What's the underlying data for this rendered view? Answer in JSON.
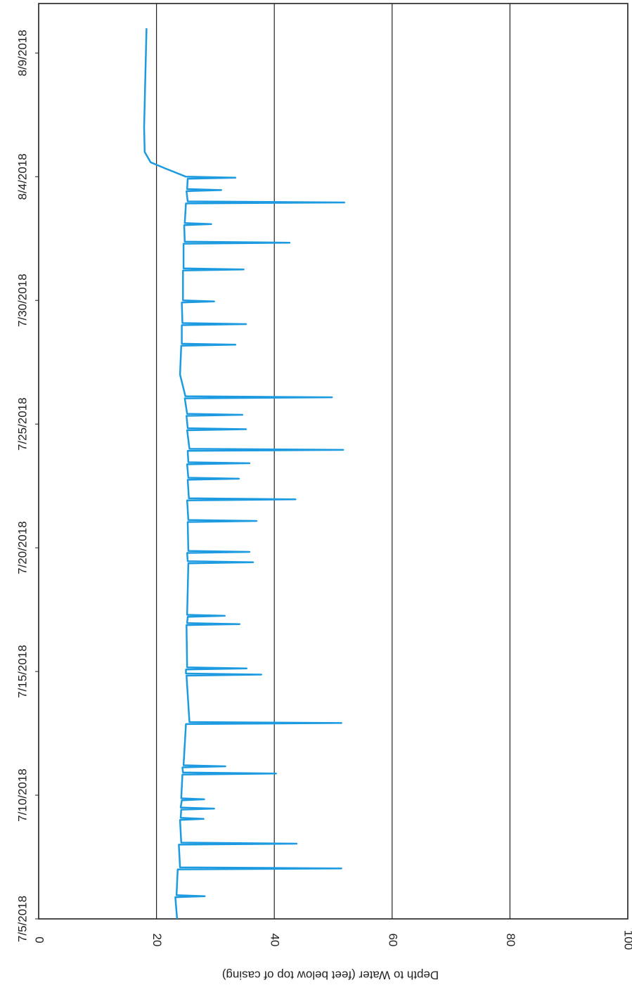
{
  "chart_data": {
    "type": "line",
    "y_label": "Depth to Water (feet below top of casing)",
    "x": [
      "2018-07-05T00:00",
      "2018-07-05T21:00",
      "2018-07-05T22:00",
      "2018-07-05T23:00",
      "2018-07-07T00:00",
      "2018-07-07T01:00",
      "2018-07-07T02:00",
      "2018-07-08T00:00",
      "2018-07-08T01:00",
      "2018-07-08T02:00",
      "2018-07-09T00:00",
      "2018-07-09T01:00",
      "2018-07-09T02:00",
      "2018-07-09T10:00",
      "2018-07-09T11:00",
      "2018-07-09T12:00",
      "2018-07-09T19:00",
      "2018-07-09T20:00",
      "2018-07-09T21:00",
      "2018-07-10T20:00",
      "2018-07-10T21:00",
      "2018-07-10T22:00",
      "2018-07-11T03:00",
      "2018-07-11T04:00",
      "2018-07-11T05:00",
      "2018-07-12T21:00",
      "2018-07-12T22:00",
      "2018-07-12T23:00",
      "2018-07-14T20:00",
      "2018-07-14T21:00",
      "2018-07-14T22:00",
      "2018-07-15T02:00",
      "2018-07-15T03:00",
      "2018-07-15T04:00",
      "2018-07-16T21:00",
      "2018-07-16T22:00",
      "2018-07-16T23:00",
      "2018-07-17T05:00",
      "2018-07-17T06:00",
      "2018-07-17T07:00",
      "2018-07-19T09:00",
      "2018-07-19T10:00",
      "2018-07-19T11:00",
      "2018-07-19T19:00",
      "2018-07-19T20:00",
      "2018-07-19T21:00",
      "2018-07-21T01:00",
      "2018-07-21T02:00",
      "2018-07-21T03:00",
      "2018-07-21T22:00",
      "2018-07-21T23:00",
      "2018-07-22T00:00",
      "2018-07-22T18:00",
      "2018-07-22T19:00",
      "2018-07-22T20:00",
      "2018-07-23T09:00",
      "2018-07-23T10:00",
      "2018-07-23T11:00",
      "2018-07-23T22:00",
      "2018-07-23T23:00",
      "2018-07-24T00:00",
      "2018-07-24T18:00",
      "2018-07-24T19:00",
      "2018-07-24T20:00",
      "2018-07-25T08:00",
      "2018-07-25T09:00",
      "2018-07-25T10:00",
      "2018-07-26T01:00",
      "2018-07-26T02:00",
      "2018-07-26T03:00",
      "2018-07-27T00:00",
      "2018-07-28T04:00",
      "2018-07-28T05:00",
      "2018-07-28T06:00",
      "2018-07-29T00:00",
      "2018-07-29T01:00",
      "2018-07-29T02:00",
      "2018-07-29T22:00",
      "2018-07-29T23:00",
      "2018-07-30T00:00",
      "2018-07-31T05:00",
      "2018-07-31T06:00",
      "2018-07-31T07:00",
      "2018-08-01T07:00",
      "2018-08-01T08:00",
      "2018-08-01T09:00",
      "2018-08-02T01:00",
      "2018-08-02T02:00",
      "2018-08-02T03:00",
      "2018-08-02T22:00",
      "2018-08-02T23:00",
      "2018-08-03T00:00",
      "2018-08-03T10:00",
      "2018-08-03T11:00",
      "2018-08-03T12:00",
      "2018-08-03T22:00",
      "2018-08-03T23:00",
      "2018-08-04T00:00",
      "2018-08-04T08:00",
      "2018-08-04T14:00",
      "2018-08-05T00:00",
      "2018-08-06T00:00",
      "2018-08-08T00:00",
      "2018-08-10T00:00"
    ],
    "series": [
      {
        "color": "#1e9be0",
        "values": [
          23.5,
          23.2,
          28.2,
          23.4,
          23.6,
          51.4,
          24.0,
          23.8,
          43.8,
          24.2,
          24.0,
          28.0,
          24.1,
          24.2,
          29.8,
          24.1,
          24.3,
          28.1,
          24.2,
          24.4,
          40.3,
          24.5,
          24.4,
          31.7,
          24.6,
          25.0,
          51.4,
          25.6,
          25.1,
          37.8,
          25.0,
          25.0,
          35.3,
          25.2,
          25.1,
          34.1,
          25.2,
          25.3,
          31.6,
          25.2,
          25.4,
          36.4,
          25.3,
          25.2,
          35.8,
          25.4,
          25.3,
          37.0,
          25.4,
          25.2,
          43.6,
          25.5,
          25.3,
          34.0,
          25.4,
          25.2,
          35.8,
          25.4,
          25.3,
          51.7,
          25.6,
          25.2,
          35.2,
          25.3,
          25.1,
          34.6,
          25.2,
          24.8,
          49.8,
          24.9,
          24.0,
          24.2,
          33.4,
          24.3,
          24.3,
          35.2,
          24.4,
          24.3,
          29.8,
          24.5,
          24.5,
          34.8,
          24.6,
          24.6,
          42.6,
          24.8,
          24.7,
          29.3,
          24.8,
          25.0,
          51.9,
          25.3,
          25.1,
          31.0,
          25.2,
          25.3,
          33.4,
          25.0,
          21.5,
          19.0,
          18.0,
          17.9,
          18.1,
          18.3
        ]
      }
    ],
    "xlim": [
      "2018-07-05T00:00",
      "2018-08-11T00:00"
    ],
    "xticks": [
      {
        "value": "2018-07-05T00:00",
        "label": "7/5/2018"
      },
      {
        "value": "2018-07-10T00:00",
        "label": "7/10/2018"
      },
      {
        "value": "2018-07-15T00:00",
        "label": "7/15/2018"
      },
      {
        "value": "2018-07-20T00:00",
        "label": "7/20/2018"
      },
      {
        "value": "2018-07-25T00:00",
        "label": "7/25/2018"
      },
      {
        "value": "2018-07-30T00:00",
        "label": "7/30/2018"
      },
      {
        "value": "2018-08-04T00:00",
        "label": "8/4/2018"
      },
      {
        "value": "2018-08-09T00:00",
        "label": "8/9/2018"
      }
    ],
    "ylim": [
      0,
      100
    ],
    "yticks": [
      0,
      20,
      40,
      60,
      80,
      100
    ],
    "grid": true
  }
}
